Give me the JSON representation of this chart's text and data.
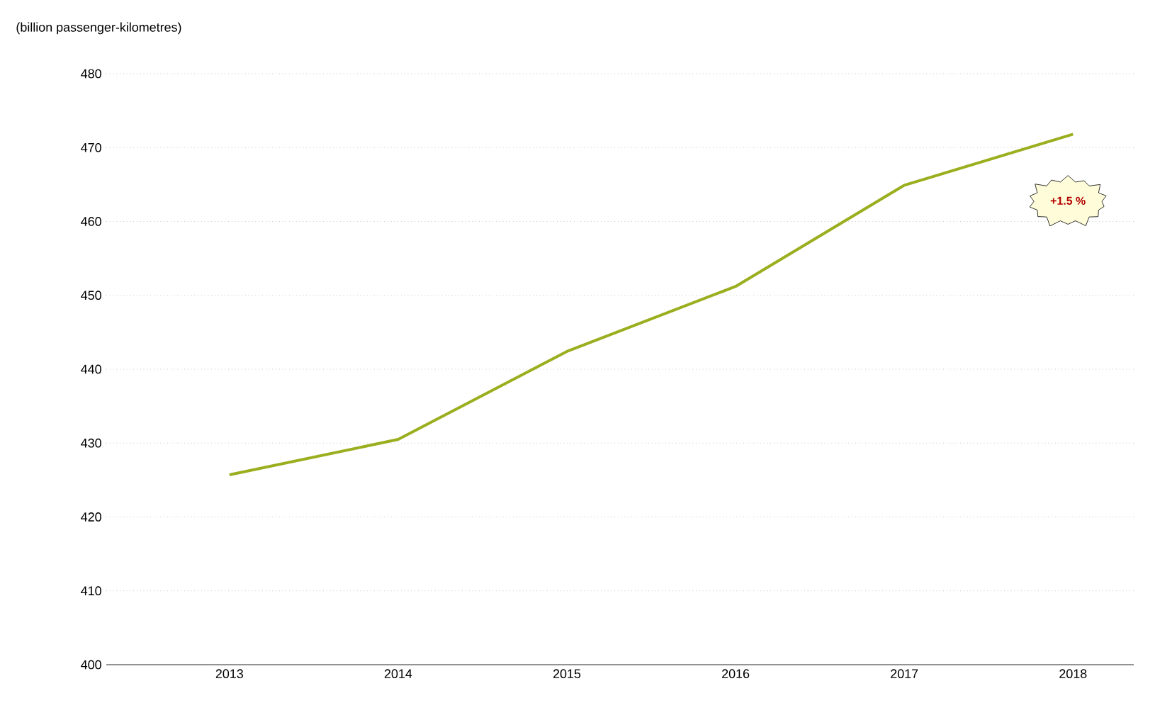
{
  "chart_data": {
    "type": "line",
    "ylabel": "(billion passenger-kilometres)",
    "categories": [
      "2013",
      "2014",
      "2015",
      "2016",
      "2017",
      "2018"
    ],
    "series": [
      {
        "color": "#9aae1e",
        "values": [
          425.7,
          430.5,
          442.4,
          451.2,
          464.9,
          471.8
        ]
      }
    ],
    "ylim": [
      400,
      480
    ],
    "yticks": [
      400,
      410,
      420,
      430,
      440,
      450,
      460,
      470,
      480
    ],
    "grid": "y",
    "marker": "none",
    "line_style": "solid",
    "annotations": [
      "+1.5 %"
    ]
  }
}
